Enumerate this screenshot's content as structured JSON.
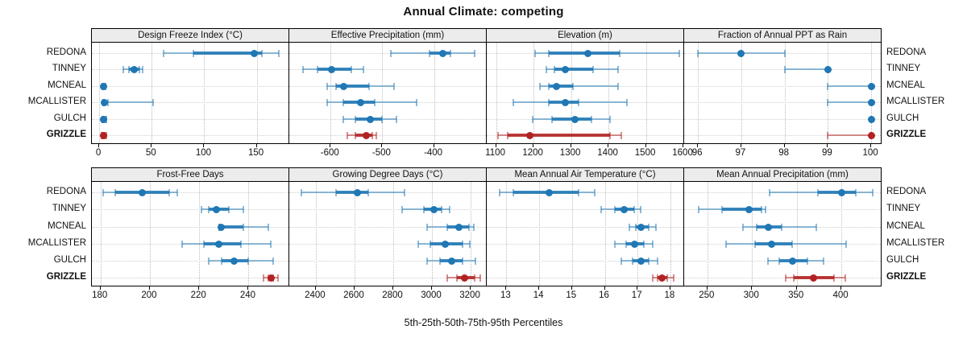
{
  "title": "Annual Climate: competing",
  "footer": "5th-25th-50th-75th-95th Percentiles",
  "chart_data": {
    "type": "trellis-dotplot",
    "description": "Two-row lattice of percentile dot plots (5th-25th-50th-75th-95th) per climate variable per station",
    "percentile_order": [
      "5th",
      "25th",
      "50th",
      "75th",
      "95th"
    ],
    "stations": [
      "REDONA",
      "TINNEY",
      "MCNEAL",
      "MCALLISTER",
      "GULCH",
      "GRIZZLE"
    ],
    "highlight_station": "GRIZZLE",
    "colors": {
      "primary": "#1f77b4",
      "highlight": "#b22222",
      "strip_bg": "#ececec",
      "grid": "#c8c8c8",
      "border": "#000000"
    },
    "rows": [
      {
        "panels": [
          {
            "title": "Design Freeze Index (°C)",
            "ticks": [
              0,
              50,
              100,
              150
            ],
            "axis_min": -7,
            "axis_max": 181,
            "series": {
              "REDONA": [
                61,
                90,
                148,
                155,
                171
              ],
              "TINNEY": [
                23,
                28,
                33,
                38,
                41
              ],
              "MCNEAL": [
                3,
                3,
                4,
                5,
                6
              ],
              "MCALLISTER": [
                4,
                4,
                5,
                8,
                51
              ],
              "GULCH": [
                3,
                3,
                4,
                6,
                7
              ],
              "GRIZZLE": [
                2,
                3,
                4,
                5,
                7
              ]
            }
          },
          {
            "title": "Effective Precipitation (mm)",
            "ticks": [
              -600,
              -500,
              -400
            ],
            "axis_min": -680,
            "axis_max": -298,
            "series": {
              "REDONA": [
                -483,
                -408,
                -383,
                -368,
                -322
              ],
              "TINNEY": [
                -654,
                -625,
                -598,
                -560,
                -537
              ],
              "MCNEAL": [
                -606,
                -590,
                -575,
                -525,
                -477
              ],
              "MCALLISTER": [
                -606,
                -575,
                -542,
                -515,
                -434
              ],
              "GULCH": [
                -575,
                -552,
                -523,
                -500,
                -472
              ],
              "GRIZZLE": [
                -568,
                -552,
                -531,
                -520,
                -512
              ]
            }
          },
          {
            "title": "Elevation (m)",
            "ticks": [
              1100,
              1200,
              1300,
              1400,
              1500,
              1600
            ],
            "axis_min": 1075,
            "axis_max": 1602,
            "series": {
              "REDONA": [
                1205,
                1240,
                1345,
                1430,
                1590
              ],
              "TINNEY": [
                1235,
                1255,
                1285,
                1360,
                1425
              ],
              "MCNEAL": [
                1218,
                1240,
                1260,
                1305,
                1425
              ],
              "MCALLISTER": [
                1145,
                1240,
                1285,
                1320,
                1450
              ],
              "GULCH": [
                1197,
                1250,
                1310,
                1355,
                1405
              ],
              "GRIZZLE": [
                1105,
                1130,
                1190,
                1405,
                1435
              ]
            }
          },
          {
            "title": "Fraction of Annual PPT as Rain",
            "ticks": [
              96,
              97,
              98,
              99,
              100
            ],
            "axis_min": 95.68,
            "axis_max": 100.24,
            "series": {
              "REDONA": [
                96,
                97,
                97,
                97,
                98
              ],
              "TINNEY": [
                98,
                99,
                99,
                99,
                99
              ],
              "MCNEAL": [
                99,
                100,
                100,
                100,
                100
              ],
              "MCALLISTER": [
                99,
                100,
                100,
                100,
                100
              ],
              "GULCH": [
                100,
                100,
                100,
                100,
                100
              ],
              "GRIZZLE": [
                99,
                100,
                100,
                100,
                100
              ]
            }
          }
        ]
      },
      {
        "panels": [
          {
            "title": "Frost-Free Days",
            "ticks": [
              180,
              200,
              220,
              240
            ],
            "axis_min": 176.5,
            "axis_max": 256.5,
            "series": {
              "REDONA": [
                181,
                186,
                197,
                208,
                211
              ],
              "TINNEY": [
                221,
                224,
                227,
                232,
                238
              ],
              "MCNEAL": [
                228,
                228,
                229,
                238,
                248
              ],
              "MCALLISTER": [
                213,
                222,
                228,
                237,
                249
              ],
              "GULCH": [
                224,
                229,
                234,
                240,
                250
              ],
              "GRIZZLE": [
                246,
                248,
                249,
                250,
                252
              ]
            }
          },
          {
            "title": "Growing Degree Days (°C)",
            "ticks": [
              2400,
              2600,
              2800,
              3000,
              3200
            ],
            "axis_min": 2263,
            "axis_max": 3283,
            "series": {
              "REDONA": [
                2325,
                2505,
                2615,
                2670,
                2860
              ],
              "TINNEY": [
                2845,
                2960,
                3010,
                3050,
                3090
              ],
              "MCNEAL": [
                2975,
                3080,
                3140,
                3190,
                3215
              ],
              "MCALLISTER": [
                2930,
                2990,
                3070,
                3160,
                3195
              ],
              "GULCH": [
                2975,
                3040,
                3100,
                3160,
                3225
              ],
              "GRIZZLE": [
                3080,
                3130,
                3170,
                3220,
                3250
              ]
            }
          },
          {
            "title": "Mean Annual Air Temperature (°C)",
            "ticks": [
              13,
              14,
              15,
              16,
              17,
              18
            ],
            "axis_min": 12.4,
            "axis_max": 18.42,
            "series": {
              "REDONA": [
                12.8,
                13.2,
                14.3,
                15.2,
                15.7
              ],
              "TINNEY": [
                15.9,
                16.3,
                16.6,
                16.9,
                17.1
              ],
              "MCNEAL": [
                16.75,
                16.95,
                17.1,
                17.35,
                17.55
              ],
              "MCALLISTER": [
                16.3,
                16.65,
                16.9,
                17.2,
                17.45
              ],
              "GULCH": [
                16.5,
                16.85,
                17.1,
                17.35,
                17.6
              ],
              "GRIZZLE": [
                17.45,
                17.6,
                17.75,
                17.9,
                18.1
              ]
            }
          },
          {
            "title": "Mean Annual Precipitation (mm)",
            "ticks": [
              250,
              300,
              350,
              400
            ],
            "axis_min": 224,
            "axis_max": 445,
            "series": {
              "REDONA": [
                320,
                374,
                400,
                416,
                435
              ],
              "TINNEY": [
                240,
                266,
                297,
                311,
                315
              ],
              "MCNEAL": [
                290,
                305,
                318,
                333,
                372
              ],
              "MCALLISTER": [
                271,
                303,
                322,
                345,
                405
              ],
              "GULCH": [
                318,
                330,
                345,
                362,
                380
              ],
              "GRIZZLE": [
                338,
                347,
                369,
                392,
                404
              ]
            }
          }
        ]
      }
    ]
  }
}
